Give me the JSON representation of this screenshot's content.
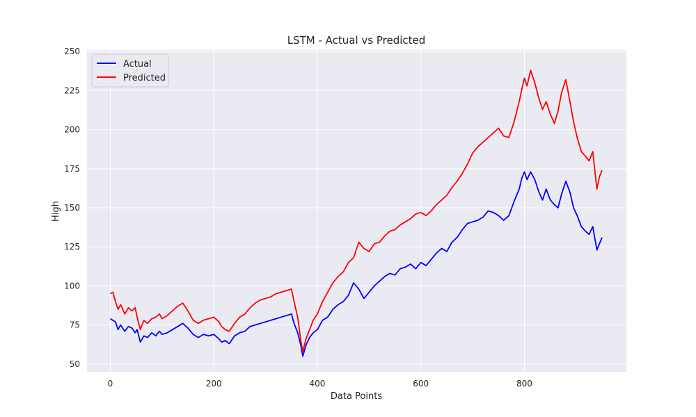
{
  "chart_data": {
    "type": "line",
    "title": "LSTM - Actual vs Predicted",
    "xlabel": "Data Points",
    "ylabel": "High",
    "xlim": [
      -45,
      997
    ],
    "ylim": [
      45,
      251
    ],
    "xticks": [
      0,
      200,
      400,
      600,
      800
    ],
    "yticks": [
      50,
      75,
      100,
      125,
      150,
      175,
      200,
      225,
      250
    ],
    "grid": true,
    "legend_position": "upper-left",
    "background_color": "#eaeaf2",
    "series": [
      {
        "name": "Actual",
        "color": "#0000ff",
        "x": [
          0,
          10,
          15,
          20,
          28,
          35,
          42,
          48,
          52,
          58,
          65,
          72,
          80,
          88,
          95,
          100,
          110,
          120,
          130,
          140,
          150,
          160,
          170,
          180,
          190,
          200,
          210,
          215,
          222,
          230,
          240,
          250,
          260,
          270,
          280,
          290,
          300,
          310,
          320,
          330,
          340,
          350,
          355,
          362,
          368,
          372,
          378,
          385,
          392,
          400,
          410,
          420,
          430,
          440,
          450,
          460,
          470,
          480,
          490,
          500,
          510,
          520,
          530,
          540,
          550,
          560,
          570,
          580,
          590,
          600,
          610,
          620,
          630,
          640,
          650,
          660,
          670,
          680,
          690,
          700,
          710,
          720,
          730,
          740,
          750,
          760,
          770,
          780,
          790,
          795,
          800,
          805,
          812,
          820,
          828,
          835,
          842,
          850,
          858,
          865,
          872,
          880,
          888,
          895,
          902,
          910,
          918,
          925,
          932,
          940,
          945,
          950
        ],
        "y": [
          79,
          77,
          72,
          75,
          71,
          74,
          73,
          70,
          72,
          64,
          68,
          67,
          70,
          68,
          71,
          69,
          70,
          72,
          74,
          76,
          73,
          69,
          67,
          69,
          68,
          69,
          66,
          64,
          65,
          63,
          68,
          70,
          71,
          74,
          75,
          76,
          77,
          78,
          79,
          80,
          81,
          82,
          76,
          70,
          62,
          55,
          62,
          67,
          70,
          72,
          78,
          80,
          85,
          88,
          90,
          94,
          102,
          98,
          92,
          96,
          100,
          103,
          106,
          108,
          107,
          111,
          112,
          114,
          111,
          115,
          113,
          117,
          121,
          124,
          122,
          128,
          131,
          136,
          140,
          141,
          142,
          144,
          148,
          147,
          145,
          142,
          145,
          154,
          162,
          169,
          173,
          168,
          173,
          168,
          160,
          155,
          162,
          155,
          152,
          150,
          159,
          167,
          160,
          150,
          145,
          138,
          135,
          133,
          138,
          123,
          127,
          131
        ]
      },
      {
        "name": "Predicted",
        "color": "#ff0000",
        "x": [
          0,
          5,
          10,
          15,
          20,
          28,
          35,
          42,
          48,
          52,
          58,
          65,
          72,
          80,
          88,
          95,
          100,
          110,
          120,
          130,
          140,
          150,
          160,
          170,
          180,
          190,
          200,
          210,
          215,
          222,
          230,
          240,
          250,
          260,
          270,
          280,
          290,
          300,
          310,
          320,
          330,
          340,
          350,
          355,
          362,
          368,
          372,
          378,
          385,
          392,
          400,
          410,
          420,
          430,
          440,
          450,
          460,
          470,
          480,
          490,
          500,
          510,
          520,
          530,
          540,
          550,
          560,
          570,
          580,
          590,
          600,
          610,
          620,
          630,
          640,
          650,
          660,
          670,
          680,
          690,
          700,
          710,
          720,
          730,
          740,
          750,
          760,
          770,
          780,
          790,
          795,
          800,
          805,
          812,
          820,
          828,
          835,
          842,
          850,
          858,
          865,
          872,
          880,
          888,
          895,
          902,
          910,
          918,
          925,
          932,
          940,
          945,
          950
        ],
        "y": [
          95,
          96,
          90,
          85,
          88,
          82,
          86,
          84,
          86,
          80,
          72,
          78,
          76,
          79,
          80,
          82,
          79,
          81,
          84,
          87,
          89,
          84,
          78,
          76,
          78,
          79,
          80,
          77,
          74,
          72,
          71,
          76,
          80,
          82,
          86,
          89,
          91,
          92,
          93,
          95,
          96,
          97,
          98,
          90,
          80,
          65,
          58,
          66,
          72,
          78,
          82,
          90,
          96,
          102,
          106,
          109,
          115,
          118,
          128,
          124,
          122,
          127,
          128,
          132,
          135,
          136,
          139,
          141,
          143,
          146,
          147,
          145,
          148,
          152,
          155,
          158,
          163,
          167,
          172,
          178,
          185,
          189,
          192,
          195,
          198,
          201,
          196,
          195,
          205,
          218,
          226,
          233,
          228,
          238,
          230,
          220,
          213,
          218,
          210,
          204,
          212,
          224,
          232,
          218,
          205,
          195,
          186,
          183,
          180,
          186,
          162,
          170,
          174
        ]
      }
    ]
  }
}
